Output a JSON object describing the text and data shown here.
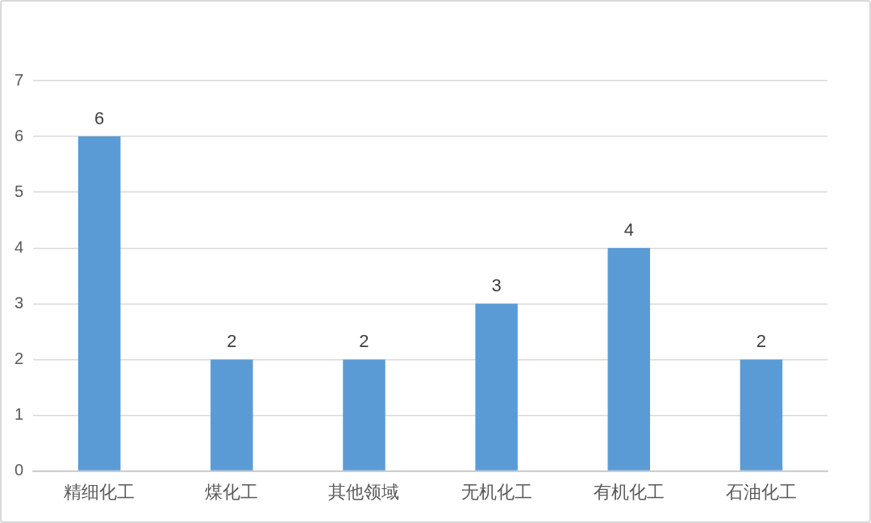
{
  "chart_data": {
    "type": "bar",
    "categories": [
      "精细化工",
      "煤化工",
      "其他领域",
      "无机化工",
      "有机化工",
      "石油化工"
    ],
    "values": [
      6,
      2,
      2,
      3,
      4,
      2
    ],
    "color": "#5b9bd5",
    "ylim": [
      0,
      7
    ],
    "yticks": [
      0,
      1,
      2,
      3,
      4,
      5,
      6,
      7
    ],
    "grid": "y",
    "data_labels": true,
    "legend": false
  }
}
